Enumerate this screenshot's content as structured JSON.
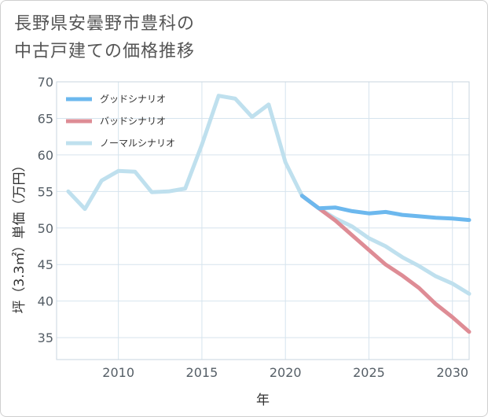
{
  "title": {
    "line1": "長野県安曇野市豊科の",
    "line2": "中古戸建ての価格推移"
  },
  "chart_data": {
    "type": "line",
    "xlabel": "年",
    "ylabel": "坪（3.3㎡）単価（万円）",
    "xlim": [
      2006.3,
      2031
    ],
    "ylim": [
      32,
      70
    ],
    "xticks": [
      2010,
      2015,
      2020,
      2025,
      2030
    ],
    "yticks": [
      35,
      40,
      45,
      50,
      55,
      60,
      65,
      70
    ],
    "grid": true,
    "legend_position": "top-left",
    "series": [
      {
        "name": "グッドシナリオ",
        "color": "#6cb8ee",
        "points": [
          [
            2021,
            54.4
          ],
          [
            2022,
            52.7
          ],
          [
            2023,
            52.8
          ],
          [
            2024,
            52.3
          ],
          [
            2025,
            52.0
          ],
          [
            2026,
            52.2
          ],
          [
            2027,
            51.8
          ],
          [
            2028,
            51.6
          ],
          [
            2029,
            51.4
          ],
          [
            2030,
            51.3
          ],
          [
            2031,
            51.1
          ]
        ]
      },
      {
        "name": "バッドシナリオ",
        "color": "#de8c95",
        "points": [
          [
            2021,
            54.4
          ],
          [
            2022,
            52.7
          ],
          [
            2023,
            51.0
          ],
          [
            2024,
            49.0
          ],
          [
            2025,
            47.0
          ],
          [
            2026,
            45.0
          ],
          [
            2027,
            43.5
          ],
          [
            2028,
            41.8
          ],
          [
            2029,
            39.6
          ],
          [
            2030,
            37.8
          ],
          [
            2031,
            35.8
          ]
        ]
      },
      {
        "name": "ノーマルシナリオ",
        "color": "#bfe0ee",
        "points": [
          [
            2007,
            55.0
          ],
          [
            2008,
            52.6
          ],
          [
            2009,
            56.5
          ],
          [
            2010,
            57.8
          ],
          [
            2011,
            57.7
          ],
          [
            2012,
            54.9
          ],
          [
            2013,
            55.0
          ],
          [
            2014,
            55.4
          ],
          [
            2015,
            61.4
          ],
          [
            2016,
            68.1
          ],
          [
            2017,
            67.7
          ],
          [
            2018,
            65.2
          ],
          [
            2019,
            66.9
          ],
          [
            2020,
            59.0
          ],
          [
            2021,
            54.4
          ],
          [
            2022,
            52.7
          ],
          [
            2023,
            51.3
          ],
          [
            2024,
            50.2
          ],
          [
            2025,
            48.6
          ],
          [
            2026,
            47.5
          ],
          [
            2027,
            46.0
          ],
          [
            2028,
            44.8
          ],
          [
            2029,
            43.4
          ],
          [
            2030,
            42.4
          ],
          [
            2031,
            41.0
          ]
        ]
      }
    ]
  }
}
